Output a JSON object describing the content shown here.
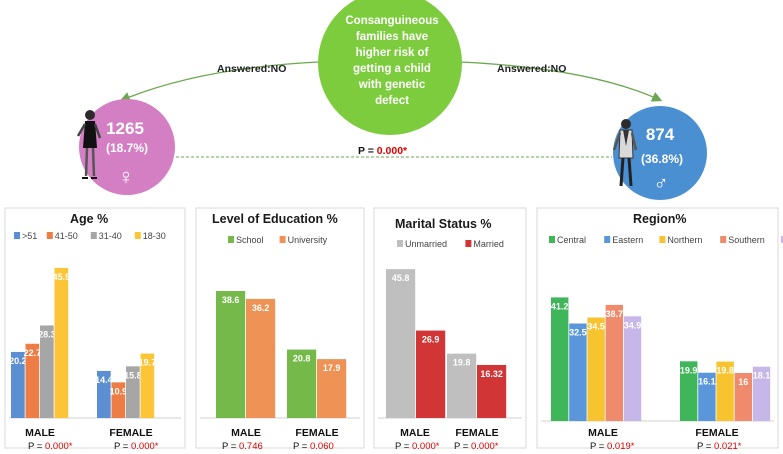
{
  "top": {
    "center_text": [
      "Consanguineous",
      "families have",
      "higher risk of",
      "getting a child",
      "with genetic",
      "defect"
    ],
    "left_arrow_label": "Answered:NO",
    "right_arrow_label": "Answered:NO",
    "female": {
      "count": "1265",
      "percent": "(18.7%)",
      "symbol": "♀",
      "icon": "woman-figure-icon"
    },
    "male": {
      "count": "874",
      "percent": "(36.8%)",
      "symbol": "♂",
      "icon": "man-figure-icon"
    },
    "p_label": "P = ",
    "p_value": "0.000*"
  },
  "colors": {
    "center_circle": "#7ccc3e",
    "female_circle": "#d47fc4",
    "male_circle": "#4b8fd3"
  },
  "chart_data": [
    {
      "id": "age",
      "type": "bar",
      "title": "Age %",
      "ylim": [
        0,
        50
      ],
      "groups": [
        "MALE",
        "FEMALE"
      ],
      "p_label": "P = ",
      "p_values": [
        "0.000*",
        "0.000*"
      ],
      "legend_position": "top",
      "series": [
        {
          "name": ">51",
          "color": "#5b8fd1",
          "values": [
            20.2,
            14.4
          ]
        },
        {
          "name": "41-50",
          "color": "#ed7d45",
          "values": [
            22.7,
            10.9
          ]
        },
        {
          "name": "31-40",
          "color": "#a6a6a6",
          "values": [
            28.3,
            15.8
          ]
        },
        {
          "name": "18-30",
          "color": "#fbc537",
          "values": [
            45.9,
            19.7
          ]
        }
      ]
    },
    {
      "id": "education",
      "type": "bar",
      "title": "Level of Education %",
      "ylim": [
        0,
        50
      ],
      "groups": [
        "MALE",
        "FEMALE"
      ],
      "p_label": "P = ",
      "p_values": [
        "0.746",
        "0.060"
      ],
      "legend_position": "top",
      "series": [
        {
          "name": "School",
          "color": "#76b94b",
          "values": [
            38.6,
            20.8
          ]
        },
        {
          "name": "University",
          "color": "#ef9255",
          "values": [
            36.2,
            17.9
          ]
        }
      ]
    },
    {
      "id": "marital",
      "type": "bar",
      "title": "Marital Status %",
      "ylim": [
        0,
        50
      ],
      "groups": [
        "MALE",
        "FEMALE"
      ],
      "p_label": "P = ",
      "p_values": [
        "0.000*",
        "0.000*"
      ],
      "legend_position": "top",
      "series": [
        {
          "name": "Unmarried",
          "color": "#bfbfbf",
          "values": [
            45.8,
            19.8
          ]
        },
        {
          "name": "Married",
          "color": "#d23535",
          "values": [
            26.9,
            16.32
          ]
        }
      ]
    },
    {
      "id": "region",
      "type": "bar",
      "title": "Region%",
      "ylim": [
        0,
        50
      ],
      "groups": [
        "MALE",
        "FEMALE"
      ],
      "p_label": "P = ",
      "p_values": [
        "0.019*",
        "0.021*"
      ],
      "legend_position": "top",
      "series": [
        {
          "name": "Central",
          "color": "#3fb65a",
          "values": [
            41.2,
            19.9
          ]
        },
        {
          "name": "Eastern",
          "color": "#5a97da",
          "values": [
            32.5,
            16.1
          ]
        },
        {
          "name": "Northern",
          "color": "#f7c42f",
          "values": [
            34.5,
            19.8
          ]
        },
        {
          "name": "Southern",
          "color": "#ef8a6c",
          "values": [
            38.7,
            16
          ]
        },
        {
          "name": "Western",
          "color": "#c7b6e8",
          "values": [
            34.9,
            18.1
          ]
        }
      ]
    }
  ]
}
